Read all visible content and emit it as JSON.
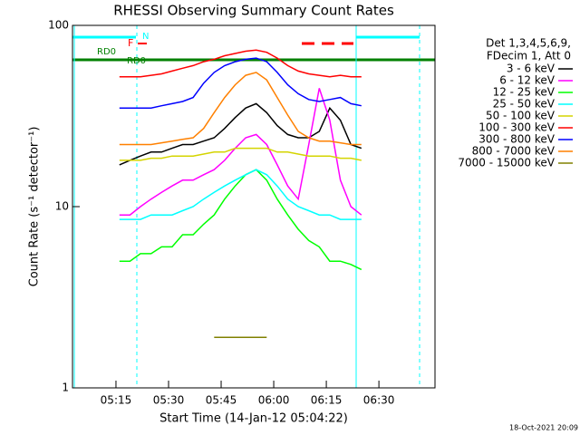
{
  "chart_data": {
    "type": "line",
    "title": "RHESSI Observing Summary Count Rates",
    "x_label": "Start Time (14-Jan-12 05:04:22)",
    "y_label": "Count Rate (s⁻¹ detector⁻¹)",
    "legend_header": [
      "Det 1,3,4,5,6,9,",
      "FDecim 1, Att 0"
    ],
    "footer": "18-Oct-2021 20:09",
    "annotations": [
      "RD0",
      "RD0",
      "F",
      "N"
    ],
    "ylog": true,
    "xlim": [
      2.6,
      106
    ],
    "ylim": [
      1,
      100
    ],
    "yticks": [
      1,
      10,
      100
    ],
    "xticks": [
      {
        "value": 15,
        "label": "05:15"
      },
      {
        "value": 30,
        "label": "05:30"
      },
      {
        "value": 45,
        "label": "05:45"
      },
      {
        "value": 60,
        "label": "06:00"
      },
      {
        "value": 75,
        "label": "06:15"
      },
      {
        "value": 90,
        "label": "06:30"
      }
    ],
    "x": [
      16,
      19,
      22,
      25,
      28,
      31,
      34,
      37,
      40,
      43,
      46,
      49,
      52,
      55,
      58,
      61,
      64,
      67,
      70,
      73,
      76,
      79,
      82,
      85
    ],
    "series": [
      {
        "name": "3 - 6 keV",
        "color": "#000000",
        "values": [
          17,
          18,
          19,
          20,
          20,
          21,
          22,
          22,
          23,
          24,
          27,
          31,
          35,
          37,
          33,
          28,
          25,
          24,
          24,
          26,
          35,
          30,
          22,
          21
        ]
      },
      {
        "name": "6 - 12 keV",
        "color": "#ff00ff",
        "values": [
          9,
          9,
          10,
          11,
          12,
          13,
          14,
          14,
          15,
          16,
          18,
          21,
          24,
          25,
          22,
          17,
          13,
          11,
          22,
          45,
          30,
          14,
          10,
          9
        ]
      },
      {
        "name": "12 - 25 keV",
        "color": "#00ff00",
        "values": [
          5,
          5,
          5.5,
          5.5,
          6,
          6,
          7,
          7,
          8,
          9,
          11,
          13,
          15,
          16,
          14,
          11,
          9,
          7.5,
          6.5,
          6,
          5,
          5,
          4.8,
          4.5
        ]
      },
      {
        "name": "25 - 50 keV",
        "color": "#00ffff",
        "values": [
          8.5,
          8.5,
          8.5,
          9,
          9,
          9,
          9.5,
          10,
          11,
          12,
          13,
          14,
          15,
          16,
          15,
          13,
          11,
          10,
          9.5,
          9,
          9,
          8.5,
          8.5,
          8.5
        ]
      },
      {
        "name": "50 - 100 keV",
        "color": "#d4d400",
        "values": [
          18,
          18,
          18,
          18.5,
          18.5,
          19,
          19,
          19,
          19.5,
          20,
          20,
          21,
          21,
          21,
          21,
          20,
          20,
          19.5,
          19,
          19,
          19,
          18.5,
          18.5,
          18
        ]
      },
      {
        "name": "100 - 300 keV",
        "color": "#ff0000",
        "values": [
          52,
          52,
          52,
          53,
          54,
          56,
          58,
          60,
          63,
          65,
          68,
          70,
          72,
          73,
          71,
          66,
          60,
          56,
          54,
          53,
          52,
          53,
          52,
          52
        ]
      },
      {
        "name": "300 - 800 keV",
        "color": "#0000ff",
        "values": [
          35,
          35,
          35,
          35,
          36,
          37,
          38,
          40,
          48,
          55,
          60,
          63,
          65,
          66,
          63,
          55,
          47,
          42,
          39,
          38,
          39,
          40,
          37,
          36
        ]
      },
      {
        "name": "800 - 7000 keV",
        "color": "#ff8000",
        "values": [
          22,
          22,
          22,
          22,
          22.5,
          23,
          23.5,
          24,
          27,
          33,
          40,
          47,
          53,
          55,
          50,
          40,
          32,
          26,
          24,
          23,
          23,
          22.5,
          22,
          22
        ]
      },
      {
        "name": "7000 - 15000 keV",
        "color": "#808000",
        "values": [
          null,
          null,
          null,
          null,
          null,
          null,
          null,
          null,
          null,
          1.9,
          1.9,
          1.9,
          1.9,
          1.9,
          1.9,
          null,
          null,
          null,
          null,
          null,
          null,
          null,
          null,
          null
        ]
      }
    ]
  }
}
